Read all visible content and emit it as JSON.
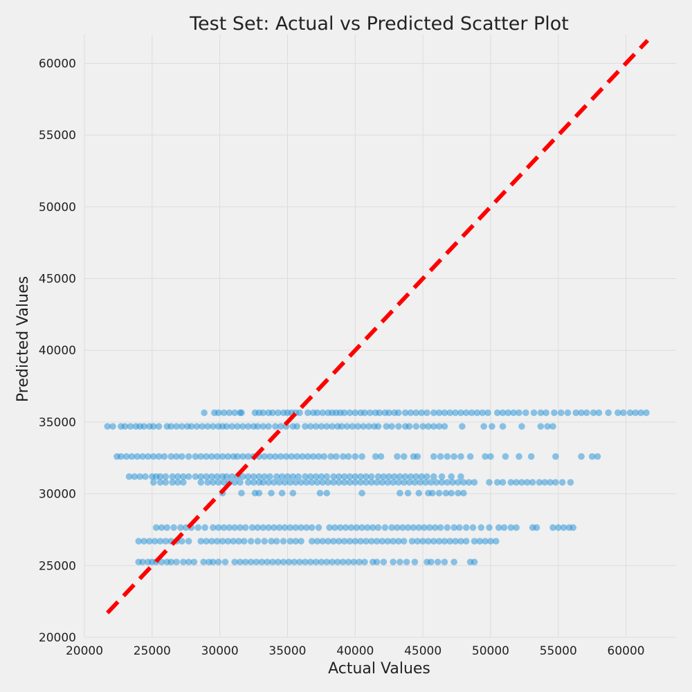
{
  "chart_data": {
    "type": "scatter",
    "title": "Test Set: Actual vs Predicted Scatter Plot",
    "xlabel": "Actual Values",
    "ylabel": "Predicted Values",
    "xlim": [
      20000,
      63700
    ],
    "ylim": [
      20000,
      62000
    ],
    "xticks": [
      20000,
      25000,
      30000,
      35000,
      40000,
      45000,
      50000,
      55000,
      60000
    ],
    "yticks": [
      20000,
      25000,
      30000,
      35000,
      40000,
      45000,
      50000,
      55000,
      60000
    ],
    "grid": true,
    "point_color": "#1f8fd6",
    "reference_line": {
      "from": [
        21700,
        21700
      ],
      "to": [
        61600,
        61600
      ],
      "color": "#ff0000",
      "style": "dashed"
    },
    "series": [
      {
        "bands": [
          {
            "y": 35650,
            "x": [
              28850,
              29600,
              29900,
              30300,
              30700,
              31100,
              31500,
              31600,
              32600,
              32900,
              33200,
              33600,
              33900,
              34300,
              34700,
              35000,
              35300,
              35600,
              35900,
              36500,
              36900,
              37200,
              37600,
              38000,
              38300,
              38600,
              38900,
              39200,
              39600,
              40000,
              40400,
              40700,
              41100,
              41500,
              41800,
              42200,
              42500,
              42900,
              43200,
              43700,
              44100,
              44500,
              44900,
              45300,
              45800,
              46200,
              46600,
              47000,
              47400,
              47800,
              48200,
              48600,
              49000,
              49400,
              49800,
              50500,
              50900,
              51300,
              51700,
              52100,
              52600,
              53200,
              53700,
              54100,
              54700,
              55200,
              55700,
              56300,
              56700,
              57100,
              57600,
              58000,
              58700,
              59400,
              59800,
              60300,
              60700,
              61100,
              61500
            ]
          },
          {
            "y": 34700,
            "x": [
              21700,
              22100,
              22700,
              23000,
              23400,
              23800,
              24100,
              24400,
              24800,
              25100,
              25500,
              26100,
              26400,
              26800,
              27200,
              27600,
              27900,
              28300,
              28700,
              29100,
              29500,
              29900,
              30200,
              30500,
              30900,
              31300,
              31700,
              32100,
              32500,
              32800,
              33200,
              33600,
              34100,
              34500,
              34900,
              35400,
              35700,
              36300,
              36700,
              37100,
              37500,
              37900,
              38300,
              38700,
              39000,
              39400,
              39800,
              40200,
              40600,
              41000,
              41400,
              41700,
              42300,
              42700,
              43200,
              43700,
              44000,
              44500,
              45000,
              45400,
              45800,
              46200,
              46600,
              47900,
              49500,
              50100,
              50900,
              52300,
              53700,
              54200,
              54600
            ]
          },
          {
            "y": 32600,
            "x": [
              22400,
              22700,
              23100,
              23500,
              23900,
              24300,
              24700,
              25100,
              25500,
              25900,
              26400,
              26800,
              27200,
              27700,
              28200,
              28600,
              29000,
              29400,
              29800,
              30200,
              30600,
              31000,
              31300,
              31700,
              32100,
              32500,
              32900,
              33300,
              33700,
              34100,
              34500,
              34900,
              35300,
              35700,
              36100,
              36500,
              36900,
              37300,
              37700,
              38200,
              38600,
              39100,
              39500,
              40000,
              40500,
              41500,
              41900,
              43100,
              43600,
              44300,
              44600,
              45800,
              46300,
              46800,
              47300,
              47800,
              48500,
              49600,
              50000,
              51100,
              52100,
              53000,
              54800,
              56700,
              57500,
              57900
            ]
          },
          {
            "y": 31200,
            "x": [
              23300,
              23700,
              24100,
              24500,
              25000,
              25300,
              25600,
              26000,
              26500,
              26900,
              27300,
              27700,
              28200,
              28600,
              29000,
              29400,
              29800,
              30200,
              30500,
              30900,
              31300,
              31700,
              32100,
              32500,
              32900,
              33300,
              33700,
              34200,
              34600,
              35000,
              35400,
              35800,
              36300,
              36700,
              37100,
              37500,
              37900,
              38400,
              38800,
              39200,
              39600,
              40000,
              40400,
              40800,
              41200,
              41700,
              42100,
              42500,
              42900,
              43300,
              43700,
              44100,
              44500,
              44900,
              45300,
              45800,
              46400,
              47100,
              47800
            ]
          },
          {
            "y": 30800,
            "x": [
              25100,
              25600,
              26000,
              26500,
              26900,
              27300,
              28600,
              29100,
              29500,
              29900,
              30300,
              30700,
              31100,
              31500,
              32100,
              32500,
              32900,
              33200,
              33600,
              34000,
              34400,
              34800,
              35200,
              35600,
              36000,
              36400,
              36800,
              37200,
              37600,
              38000,
              38400,
              38800,
              39200,
              39600,
              40000,
              40400,
              40800,
              41200,
              41600,
              42000,
              42400,
              42800,
              43200,
              43600,
              44000,
              44400,
              44800,
              45200,
              45600,
              46000,
              46400,
              46800,
              47200,
              47600,
              48000,
              48400,
              48800,
              49900,
              50500,
              50900,
              51500,
              51900,
              52300,
              52700,
              53100,
              53600,
              54000,
              54400,
              54800,
              55300,
              55900
            ]
          },
          {
            "y": 30050,
            "x": [
              30200,
              31600,
              32600,
              32900,
              33800,
              34600,
              35400,
              37400,
              37900,
              40500,
              43300,
              43900,
              44700,
              45400,
              45700,
              46200,
              46700,
              47100,
              47600,
              48000
            ]
          },
          {
            "y": 27650,
            "x": [
              25300,
              25700,
              26100,
              26600,
              27100,
              27500,
              27900,
              28400,
              28900,
              29500,
              29900,
              30300,
              30700,
              31100,
              31500,
              31900,
              32400,
              32800,
              33200,
              33600,
              34000,
              34400,
              34800,
              35200,
              35600,
              36000,
              36400,
              36800,
              37300,
              38100,
              38500,
              38900,
              39300,
              39700,
              40100,
              40500,
              40900,
              41300,
              41700,
              42200,
              42700,
              43100,
              43500,
              43900,
              44300,
              44700,
              45100,
              45500,
              45900,
              46300,
              46800,
              47300,
              47700,
              48200,
              48700,
              49300,
              49900,
              50600,
              51000,
              51500,
              51900,
              53100,
              53400,
              54600,
              55000,
              55400,
              55800,
              56100
            ]
          },
          {
            "y": 26700,
            "x": [
              24000,
              24400,
              24800,
              25200,
              25600,
              26000,
              26400,
              26800,
              27200,
              27700,
              28600,
              29000,
              29400,
              29800,
              30200,
              30600,
              31000,
              31400,
              31800,
              32300,
              32800,
              33300,
              33800,
              34200,
              34700,
              35200,
              35600,
              36000,
              36800,
              37200,
              37600,
              38000,
              38400,
              38800,
              39200,
              39600,
              40000,
              40400,
              40800,
              41200,
              41600,
              42000,
              42400,
              42800,
              43200,
              43600,
              44200,
              44600,
              45000,
              45400,
              45800,
              46200,
              46600,
              47000,
              47400,
              47800,
              48200,
              48800,
              49200,
              49600,
              50000,
              50400
            ]
          },
          {
            "y": 25250,
            "x": [
              24000,
              24300,
              24700,
              25000,
              25300,
              25700,
              26100,
              26400,
              26800,
              27300,
              27700,
              28100,
              28800,
              29200,
              29500,
              29900,
              30400,
              31100,
              31500,
              31900,
              32300,
              32700,
              33100,
              33500,
              33900,
              34300,
              34700,
              35100,
              35500,
              35900,
              36300,
              36700,
              37100,
              37500,
              37900,
              38300,
              38700,
              39100,
              39500,
              39900,
              40300,
              40700,
              41300,
              41600,
              42100,
              42800,
              43300,
              43800,
              44400,
              45300,
              45600,
              46100,
              46600,
              47300,
              48500,
              48800
            ]
          }
        ]
      }
    ]
  }
}
